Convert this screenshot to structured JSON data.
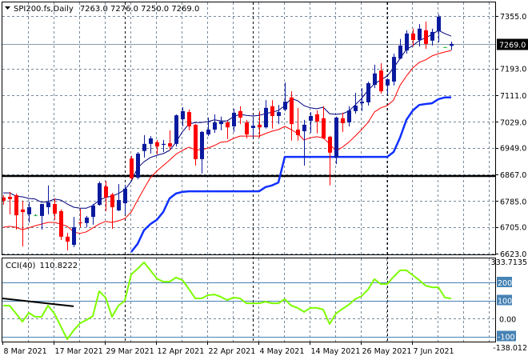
{
  "header": {
    "symbol_timeframe": "SPI200.fs,Daily",
    "ohlc": "7263.0 7276.0 7250.0 7269.0",
    "menu_icon": "triangle-down-icon"
  },
  "indicator_label": {
    "name": "CCI(40)",
    "value": "110.8222"
  },
  "colors": {
    "bull": "#0a1a9e",
    "bear": "#ff0000",
    "doji": "#32cd32",
    "ma_fast": "#000080",
    "ma_slow": "#ff0000",
    "stop_line": "#1030ff",
    "support_line": "#000000",
    "cci": "#7cfc00",
    "cci_levels": "#4682b4",
    "grid": "#778899",
    "period_separator": "#000000"
  },
  "chart_data": [
    {
      "type": "candlestick",
      "title": "SPI200.fs,Daily",
      "ylim": [
        6623,
        7355
      ],
      "y_tick_labels": [
        "7355.0",
        "7193.0",
        "7111.0",
        "7029.0",
        "6949.0",
        "6867.0",
        "6785.0",
        "6705.0",
        "6623.0"
      ],
      "current_price": {
        "value": 7269.0,
        "label": "7269.0"
      },
      "horizontal_line": 6862,
      "grid": true,
      "x_labels": [
        {
          "bar": 0,
          "label": "8 Mar 2021"
        },
        {
          "bar": 8,
          "label": "17 Mar 2021"
        },
        {
          "bar": 16,
          "label": "29 Mar 2021"
        },
        {
          "bar": 24,
          "label": "12 Apr 2021"
        },
        {
          "bar": 32,
          "label": "22 Apr 2021"
        },
        {
          "bar": 40,
          "label": "4 May 2021"
        },
        {
          "bar": 48,
          "label": "14 May 2021"
        },
        {
          "bar": 56,
          "label": "26 May 2021"
        },
        {
          "bar": 64,
          "label": "7 Jun 2021"
        }
      ],
      "period_separators_bars": [
        19,
        39,
        60
      ],
      "ohlc": [
        [
          6796,
          6803,
          6773,
          6786
        ],
        [
          6798,
          6813,
          6744,
          6791
        ],
        [
          6803,
          6808,
          6697,
          6741
        ],
        [
          6759,
          6786,
          6645,
          6751
        ],
        [
          6744,
          6783,
          6719,
          6766
        ],
        [
          6741,
          6744,
          6739,
          6741
        ],
        [
          6739,
          6776,
          6697,
          6776
        ],
        [
          6766,
          6833,
          6744,
          6781
        ],
        [
          6776,
          6793,
          6727,
          6746
        ],
        [
          6754,
          6759,
          6665,
          6675
        ],
        [
          6675,
          6687,
          6633,
          6660
        ],
        [
          6650,
          6736,
          6643,
          6704
        ],
        [
          6719,
          6761,
          6704,
          6717
        ],
        [
          6717,
          6739,
          6704,
          6734
        ],
        [
          6736,
          6776,
          6712,
          6771
        ],
        [
          6773,
          6845,
          6771,
          6840
        ],
        [
          6830,
          6847,
          6754,
          6796
        ],
        [
          6805,
          6810,
          6699,
          6766
        ],
        [
          6756,
          6837,
          6754,
          6788
        ],
        [
          6778,
          6835,
          6744,
          6823
        ],
        [
          6916,
          6924,
          6850,
          6855
        ],
        [
          6857,
          6936,
          6852,
          6931
        ],
        [
          6939,
          6988,
          6919,
          6961
        ],
        [
          6961,
          6985,
          6931,
          6978
        ],
        [
          6966,
          6973,
          6929,
          6953
        ],
        [
          6958,
          6973,
          6936,
          6961
        ],
        [
          6963,
          7003,
          6941,
          6953
        ],
        [
          6961,
          7052,
          6953,
          7049
        ],
        [
          7037,
          7074,
          7015,
          7062
        ],
        [
          7059,
          7067,
          7003,
          7015
        ],
        [
          7020,
          7022,
          6894,
          6914
        ],
        [
          6914,
          7000,
          6870,
          6998
        ],
        [
          6990,
          7042,
          6985,
          7005
        ],
        [
          7005,
          7052,
          6995,
          7027
        ],
        [
          7022,
          7045,
          7003,
          7030
        ],
        [
          7027,
          7032,
          6976,
          7012
        ],
        [
          7015,
          7069,
          6998,
          7057
        ],
        [
          7062,
          7077,
          7022,
          7042
        ],
        [
          7027,
          7035,
          6978,
          6990
        ],
        [
          7010,
          7045,
          6980,
          7017
        ],
        [
          7020,
          7062,
          6980,
          7012
        ],
        [
          7012,
          7096,
          7008,
          7072
        ],
        [
          7077,
          7096,
          7008,
          7047
        ],
        [
          7047,
          7081,
          7022,
          7059
        ],
        [
          7067,
          7150,
          7062,
          7091
        ],
        [
          7104,
          7123,
          6971,
          7022
        ],
        [
          7005,
          7072,
          6971,
          6988
        ],
        [
          7000,
          7035,
          6894,
          7020
        ],
        [
          7032,
          7059,
          6995,
          7047
        ],
        [
          7052,
          7064,
          6993,
          7030
        ],
        [
          7040,
          7077,
          6976,
          6978
        ],
        [
          6983,
          6986,
          6833,
          6934
        ],
        [
          6919,
          7045,
          6899,
          7042
        ],
        [
          7040,
          7057,
          6998,
          7025
        ],
        [
          7027,
          7077,
          7015,
          7064
        ],
        [
          7062,
          7118,
          7054,
          7079
        ],
        [
          7086,
          7133,
          7062,
          7091
        ],
        [
          7089,
          7153,
          7079,
          7148
        ],
        [
          7143,
          7205,
          7133,
          7178
        ],
        [
          7187,
          7210,
          7116,
          7123
        ],
        [
          7141,
          7163,
          7113,
          7160
        ],
        [
          7153,
          7239,
          7141,
          7229
        ],
        [
          7224,
          7284,
          7222,
          7264
        ],
        [
          7249,
          7311,
          7239,
          7301
        ],
        [
          7301,
          7316,
          7261,
          7281
        ],
        [
          7281,
          7330,
          7261,
          7316
        ],
        [
          7311,
          7338,
          7254,
          7269
        ],
        [
          7279,
          7316,
          7264,
          7306
        ],
        [
          7308,
          7360,
          7274,
          7353
        ],
        [
          7259,
          7260,
          7258,
          7259
        ],
        [
          7263,
          7276,
          7250,
          7269
        ]
      ],
      "overlays": {
        "ma_fast": [
          6810,
          6810,
          6800,
          6798,
          6793,
          6791,
          6781,
          6783,
          6791,
          6788,
          6776,
          6766,
          6763,
          6763,
          6771,
          6788,
          6796,
          6800,
          6808,
          6820,
          6845,
          6887,
          6906,
          6919,
          6926,
          6931,
          6941,
          6966,
          6998,
          7022,
          7027,
          7027,
          7030,
          7035,
          7032,
          7032,
          7045,
          7052,
          7049,
          7047,
          7049,
          7054,
          7059,
          7064,
          7079,
          7101,
          7094,
          7079,
          7072,
          7069,
          7074,
          7054,
          7052,
          7054,
          7062,
          7081,
          7101,
          7126,
          7146,
          7158,
          7170,
          7195,
          7224,
          7252,
          7264,
          7279,
          7288,
          7298,
          7311,
          7301,
          7293
        ],
        "ma_slow": [
          6704,
          6707,
          6704,
          6697,
          6702,
          6709,
          6714,
          6719,
          6719,
          6714,
          6707,
          6690,
          6685,
          6690,
          6702,
          6714,
          6722,
          6719,
          6724,
          6731,
          6751,
          6788,
          6823,
          6857,
          6877,
          6894,
          6911,
          6929,
          6941,
          6951,
          6943,
          6943,
          6948,
          6956,
          6966,
          6968,
          6978,
          6985,
          6985,
          6985,
          6985,
          6993,
          7000,
          7005,
          7015,
          7005,
          6993,
          6973,
          6980,
          6983,
          6980,
          6961,
          6939,
          6951,
          6966,
          6985,
          7005,
          7027,
          7059,
          7072,
          7079,
          7096,
          7141,
          7170,
          7195,
          7212,
          7220,
          7232,
          7239,
          7244,
          7249
        ],
        "stop_line": [
          null,
          null,
          null,
          null,
          null,
          null,
          null,
          null,
          null,
          null,
          null,
          null,
          null,
          null,
          null,
          null,
          null,
          null,
          null,
          null,
          6628,
          6653,
          6695,
          6714,
          6727,
          6751,
          6793,
          6808,
          6813,
          6815,
          6815,
          6815,
          6815,
          6815,
          6815,
          6815,
          6815,
          6815,
          6815,
          6815,
          6815,
          6828,
          6833,
          6842,
          6921,
          6921,
          6921,
          6921,
          6921,
          6921,
          6921,
          6921,
          6921,
          6921,
          6921,
          6921,
          6921,
          6921,
          6921,
          6921,
          6921,
          6936,
          6980,
          7035,
          7064,
          7081,
          7084,
          7086,
          7099,
          7104,
          7104
        ]
      }
    },
    {
      "type": "line",
      "title": "CCI(40) 110.8222",
      "ylim": [
        -138.012,
        333.7135
      ],
      "y_tick_labels": {
        "top": "333.7135",
        "zero": "0.00",
        "bottom": "-138.012"
      },
      "levels": [
        {
          "value": 200,
          "label": "200"
        },
        {
          "value": 100,
          "label": "100"
        },
        {
          "value": -100,
          "label": "-100"
        }
      ],
      "series": [
        {
          "values": [
            71,
            71,
            27,
            -18,
            31,
            9,
            9,
            71,
            27,
            -44,
            -116,
            -67,
            -27,
            -9,
            13,
            151,
            116,
            9,
            71,
            98,
            244,
            276,
            311,
            267,
            222,
            204,
            204,
            227,
            213,
            164,
            111,
            111,
            129,
            133,
            120,
            102,
            116,
            111,
            84,
            84,
            84,
            93,
            84,
            84,
            107,
            71,
            58,
            36,
            58,
            58,
            49,
            -31,
            27,
            53,
            76,
            107,
            124,
            160,
            218,
            191,
            191,
            231,
            267,
            267,
            240,
            213,
            182,
            173,
            173,
            116,
            110.8222
          ]
        }
      ],
      "trendline": {
        "start_bar": 0,
        "start_value": 111,
        "end_bar": 11,
        "end_value": 67
      }
    }
  ]
}
